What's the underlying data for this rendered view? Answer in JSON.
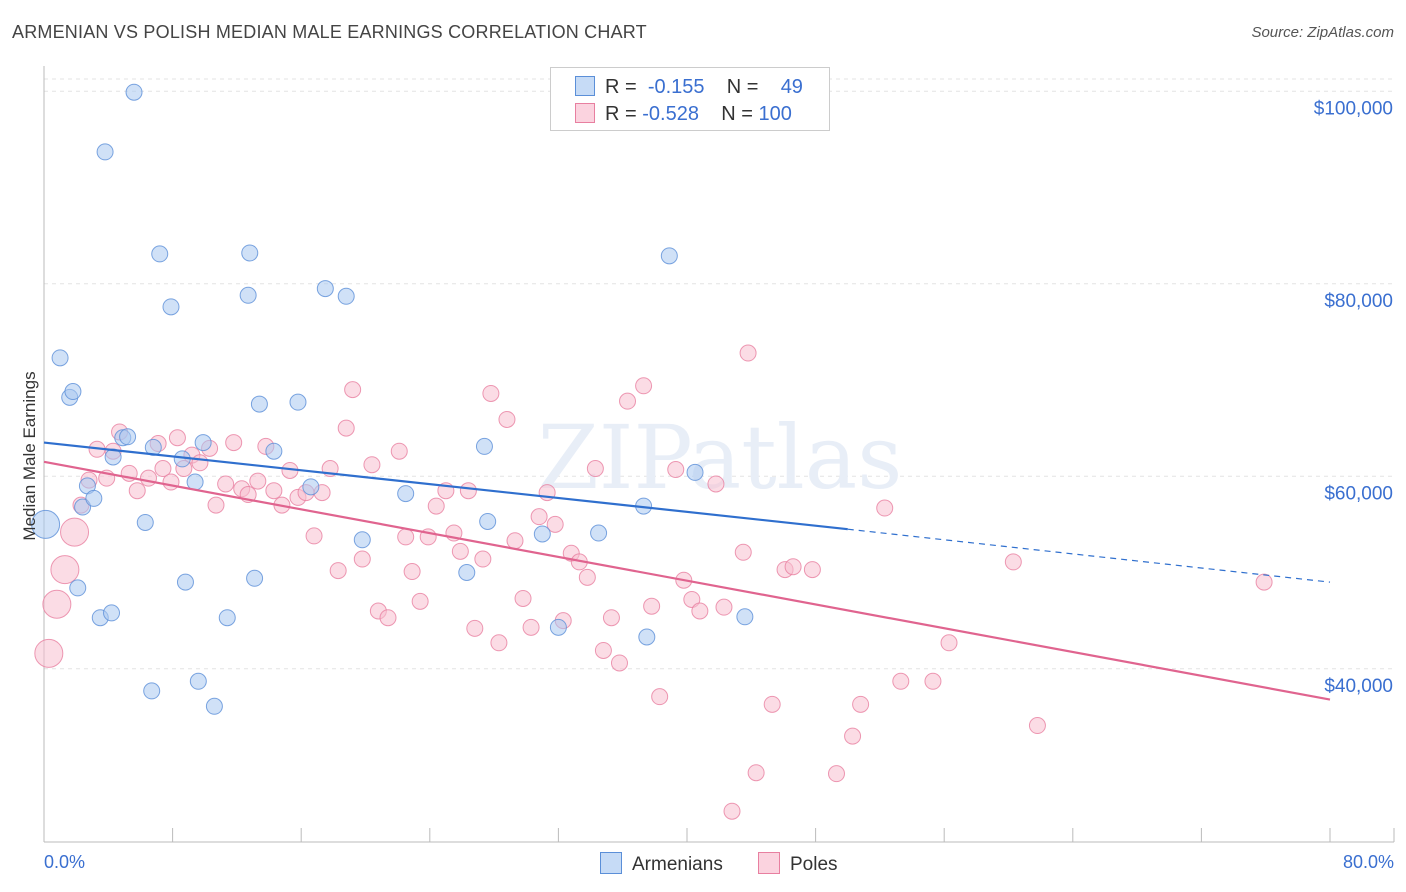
{
  "title": "ARMENIAN VS POLISH MEDIAN MALE EARNINGS CORRELATION CHART",
  "source": "Source: ZipAtlas.com",
  "watermark": "ZIPatlas",
  "legend": {
    "rows": [
      {
        "r_label": "R =",
        "r_value": "-0.155",
        "n_label": "N =",
        "n_value": "49",
        "color": "#a9c8f0",
        "border": "#5b8fd8"
      },
      {
        "r_label": "R =",
        "r_value": "-0.528",
        "n_label": "N =",
        "n_value": "100",
        "color": "#f7bfd0",
        "border": "#e87fa0"
      }
    ]
  },
  "bottom_legend": [
    {
      "label": "Armenians",
      "color": "#a9c8f0",
      "border": "#5b8fd8"
    },
    {
      "label": "Poles",
      "color": "#f7bfd0",
      "border": "#e87fa0"
    }
  ],
  "chart_data": {
    "type": "scatter",
    "xlabel": "",
    "ylabel": "Median Male Earnings",
    "xlim": [
      0,
      80
    ],
    "ylim": [
      22000,
      102000
    ],
    "x_tick_labels": {
      "left": "0.0%",
      "right": "80.0%"
    },
    "y_ticks": [
      {
        "value": 40000,
        "label": "$40,000"
      },
      {
        "value": 60000,
        "label": "$60,000"
      },
      {
        "value": 80000,
        "label": "$80,000"
      },
      {
        "value": 100000,
        "label": "$100,000"
      }
    ],
    "grid": true,
    "series": [
      {
        "name": "Armenians",
        "color": "#a9c8f0",
        "stroke": "#5b8fd8",
        "trend": {
          "x": [
            0,
            50
          ],
          "y": [
            63500,
            54500
          ],
          "dashed_to": [
            80,
            49000
          ],
          "color": "#2f6fce"
        },
        "points": [
          {
            "x": 0.1,
            "y": 55000,
            "big": true
          },
          {
            "x": 1.0,
            "y": 72300
          },
          {
            "x": 1.6,
            "y": 68200
          },
          {
            "x": 1.8,
            "y": 68800
          },
          {
            "x": 2.1,
            "y": 48400
          },
          {
            "x": 2.4,
            "y": 56800
          },
          {
            "x": 2.7,
            "y": 59000
          },
          {
            "x": 3.1,
            "y": 57700
          },
          {
            "x": 3.5,
            "y": 45300
          },
          {
            "x": 3.8,
            "y": 93700
          },
          {
            "x": 4.3,
            "y": 62000
          },
          {
            "x": 4.9,
            "y": 64000
          },
          {
            "x": 5.2,
            "y": 64100
          },
          {
            "x": 5.6,
            "y": 99900
          },
          {
            "x": 6.3,
            "y": 55200
          },
          {
            "x": 6.8,
            "y": 63000
          },
          {
            "x": 7.2,
            "y": 83100
          },
          {
            "x": 7.9,
            "y": 77600
          },
          {
            "x": 8.6,
            "y": 61800
          },
          {
            "x": 8.8,
            "y": 49000
          },
          {
            "x": 9.4,
            "y": 59400
          },
          {
            "x": 9.6,
            "y": 38700
          },
          {
            "x": 9.9,
            "y": 63500
          },
          {
            "x": 10.6,
            "y": 36100
          },
          {
            "x": 11.4,
            "y": 45300
          },
          {
            "x": 12.7,
            "y": 78800
          },
          {
            "x": 12.8,
            "y": 83200
          },
          {
            "x": 13.1,
            "y": 49400
          },
          {
            "x": 13.4,
            "y": 67500
          },
          {
            "x": 14.3,
            "y": 62600
          },
          {
            "x": 15.8,
            "y": 67700
          },
          {
            "x": 16.6,
            "y": 58900
          },
          {
            "x": 17.5,
            "y": 79500
          },
          {
            "x": 18.8,
            "y": 78700
          },
          {
            "x": 19.8,
            "y": 53400
          },
          {
            "x": 26.3,
            "y": 50000
          },
          {
            "x": 27.4,
            "y": 63100
          },
          {
            "x": 27.6,
            "y": 55300
          },
          {
            "x": 32.0,
            "y": 44300
          },
          {
            "x": 34.5,
            "y": 54100
          },
          {
            "x": 37.3,
            "y": 56900
          },
          {
            "x": 37.5,
            "y": 43300
          },
          {
            "x": 38.9,
            "y": 82900
          },
          {
            "x": 40.5,
            "y": 60400
          },
          {
            "x": 43.6,
            "y": 45400
          },
          {
            "x": 6.7,
            "y": 37700
          },
          {
            "x": 4.2,
            "y": 45800
          },
          {
            "x": 22.5,
            "y": 58200
          },
          {
            "x": 31.0,
            "y": 54000
          }
        ]
      },
      {
        "name": "Poles",
        "color": "#f7bfd0",
        "stroke": "#e87fa0",
        "trend": {
          "x": [
            0,
            80
          ],
          "y": [
            61500,
            36800
          ],
          "color": "#e0648f"
        },
        "points": [
          {
            "x": 0.3,
            "y": 41600,
            "big": true
          },
          {
            "x": 0.8,
            "y": 46700,
            "big": true
          },
          {
            "x": 1.3,
            "y": 50300,
            "big": true
          },
          {
            "x": 1.9,
            "y": 54200,
            "big": true
          },
          {
            "x": 2.3,
            "y": 57000
          },
          {
            "x": 2.8,
            "y": 59600
          },
          {
            "x": 3.3,
            "y": 62800
          },
          {
            "x": 3.9,
            "y": 59800
          },
          {
            "x": 4.3,
            "y": 62600
          },
          {
            "x": 4.7,
            "y": 64600
          },
          {
            "x": 5.3,
            "y": 60300
          },
          {
            "x": 5.8,
            "y": 58500
          },
          {
            "x": 6.5,
            "y": 59800
          },
          {
            "x": 7.1,
            "y": 63400
          },
          {
            "x": 7.4,
            "y": 60800
          },
          {
            "x": 7.9,
            "y": 59400
          },
          {
            "x": 8.3,
            "y": 64000
          },
          {
            "x": 8.7,
            "y": 60800
          },
          {
            "x": 9.2,
            "y": 62200
          },
          {
            "x": 9.7,
            "y": 61400
          },
          {
            "x": 10.3,
            "y": 62900
          },
          {
            "x": 10.7,
            "y": 57000
          },
          {
            "x": 11.3,
            "y": 59200
          },
          {
            "x": 11.8,
            "y": 63500
          },
          {
            "x": 12.3,
            "y": 58700
          },
          {
            "x": 12.7,
            "y": 58100
          },
          {
            "x": 13.3,
            "y": 59500
          },
          {
            "x": 13.8,
            "y": 63100
          },
          {
            "x": 14.3,
            "y": 58500
          },
          {
            "x": 14.8,
            "y": 57000
          },
          {
            "x": 15.3,
            "y": 60600
          },
          {
            "x": 15.8,
            "y": 57800
          },
          {
            "x": 16.3,
            "y": 58300
          },
          {
            "x": 16.8,
            "y": 53800
          },
          {
            "x": 17.3,
            "y": 58300
          },
          {
            "x": 17.8,
            "y": 60800
          },
          {
            "x": 18.3,
            "y": 50200
          },
          {
            "x": 18.8,
            "y": 65000
          },
          {
            "x": 19.2,
            "y": 69000
          },
          {
            "x": 19.8,
            "y": 51400
          },
          {
            "x": 20.4,
            "y": 61200
          },
          {
            "x": 20.8,
            "y": 46000
          },
          {
            "x": 21.4,
            "y": 45300
          },
          {
            "x": 22.1,
            "y": 62600
          },
          {
            "x": 22.5,
            "y": 53700
          },
          {
            "x": 22.9,
            "y": 50100
          },
          {
            "x": 23.4,
            "y": 47000
          },
          {
            "x": 23.9,
            "y": 53700
          },
          {
            "x": 24.4,
            "y": 56900
          },
          {
            "x": 25.0,
            "y": 58500
          },
          {
            "x": 25.5,
            "y": 54100
          },
          {
            "x": 25.9,
            "y": 52200
          },
          {
            "x": 26.4,
            "y": 58500
          },
          {
            "x": 26.8,
            "y": 44200
          },
          {
            "x": 27.3,
            "y": 51400
          },
          {
            "x": 27.8,
            "y": 68600
          },
          {
            "x": 28.3,
            "y": 42700
          },
          {
            "x": 28.8,
            "y": 65900
          },
          {
            "x": 29.3,
            "y": 53300
          },
          {
            "x": 29.8,
            "y": 47300
          },
          {
            "x": 30.3,
            "y": 44300
          },
          {
            "x": 30.8,
            "y": 55800
          },
          {
            "x": 31.3,
            "y": 58300
          },
          {
            "x": 31.8,
            "y": 55000
          },
          {
            "x": 32.3,
            "y": 45000
          },
          {
            "x": 32.8,
            "y": 52000
          },
          {
            "x": 33.3,
            "y": 51100
          },
          {
            "x": 33.8,
            "y": 49500
          },
          {
            "x": 34.3,
            "y": 60800
          },
          {
            "x": 34.8,
            "y": 41900
          },
          {
            "x": 35.3,
            "y": 45300
          },
          {
            "x": 35.8,
            "y": 40600
          },
          {
            "x": 36.3,
            "y": 67800
          },
          {
            "x": 37.3,
            "y": 69400
          },
          {
            "x": 37.8,
            "y": 46500
          },
          {
            "x": 38.3,
            "y": 37100
          },
          {
            "x": 39.3,
            "y": 60700
          },
          {
            "x": 39.8,
            "y": 49200
          },
          {
            "x": 40.3,
            "y": 47200
          },
          {
            "x": 40.8,
            "y": 46000
          },
          {
            "x": 41.8,
            "y": 59200
          },
          {
            "x": 42.3,
            "y": 46400
          },
          {
            "x": 42.8,
            "y": 25200
          },
          {
            "x": 43.5,
            "y": 52100
          },
          {
            "x": 43.8,
            "y": 72800
          },
          {
            "x": 44.3,
            "y": 29200
          },
          {
            "x": 45.3,
            "y": 36300
          },
          {
            "x": 46.1,
            "y": 50300
          },
          {
            "x": 46.6,
            "y": 50600
          },
          {
            "x": 47.8,
            "y": 50300
          },
          {
            "x": 49.3,
            "y": 29100
          },
          {
            "x": 50.3,
            "y": 33000
          },
          {
            "x": 50.8,
            "y": 36300
          },
          {
            "x": 52.3,
            "y": 56700
          },
          {
            "x": 53.3,
            "y": 38700
          },
          {
            "x": 55.3,
            "y": 38700
          },
          {
            "x": 56.3,
            "y": 42700
          },
          {
            "x": 60.3,
            "y": 51100
          },
          {
            "x": 61.8,
            "y": 34100
          },
          {
            "x": 75.9,
            "y": 49000
          }
        ]
      }
    ]
  }
}
